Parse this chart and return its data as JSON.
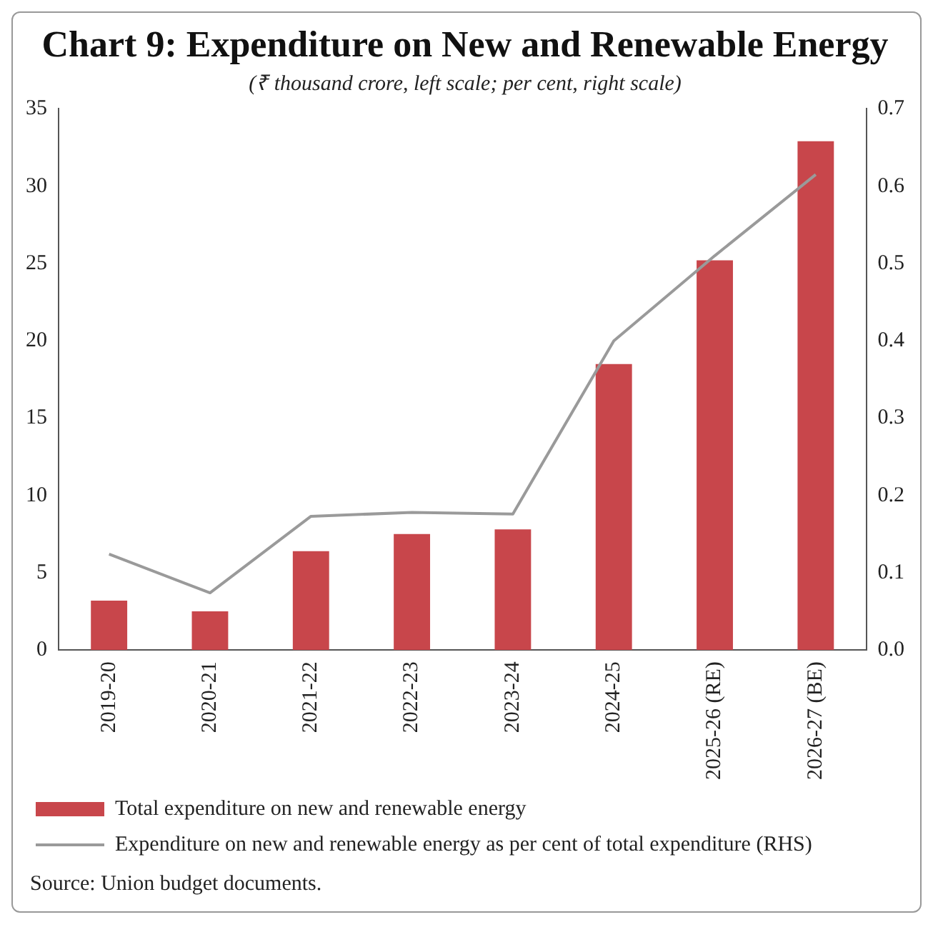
{
  "chart_data": {
    "type": "bar",
    "title": "Chart 9: Expenditure on New and Renewable Energy",
    "subtitle": "(₹ thousand crore, left scale; per cent, right scale)",
    "categories": [
      "2019-20",
      "2020-21",
      "2021-22",
      "2022-23",
      "2023-24",
      "2024-25",
      "2025-26 (RE)",
      "2026-27 (BE)"
    ],
    "series": [
      {
        "name": "Total expenditure on new and renewable energy",
        "color": "#c8464b",
        "values": [
          3.2,
          2.5,
          6.4,
          7.5,
          7.8,
          18.5,
          25.2,
          32.9
        ]
      },
      {
        "name": "Expenditure on new and renewable energy as per cent of total expenditure (RHS)",
        "type": "line",
        "axis": "y2",
        "color": "#9a9a9a",
        "values": [
          0.124,
          0.074,
          0.173,
          0.178,
          0.176,
          0.4,
          0.51,
          0.615
        ]
      }
    ],
    "ylim": [
      0,
      35
    ],
    "yticks": [
      0,
      5,
      10,
      15,
      20,
      25,
      30,
      35
    ],
    "y2lim": [
      0,
      0.7
    ],
    "y2ticks": [
      {
        "value": 0,
        "label": "0.0"
      },
      0.1,
      0.2,
      0.3,
      0.4,
      0.5,
      0.6,
      0.7
    ],
    "grid": false,
    "legend": "bottom",
    "marker": "none",
    "annotations": [
      "Source: Union budget documents."
    ]
  }
}
